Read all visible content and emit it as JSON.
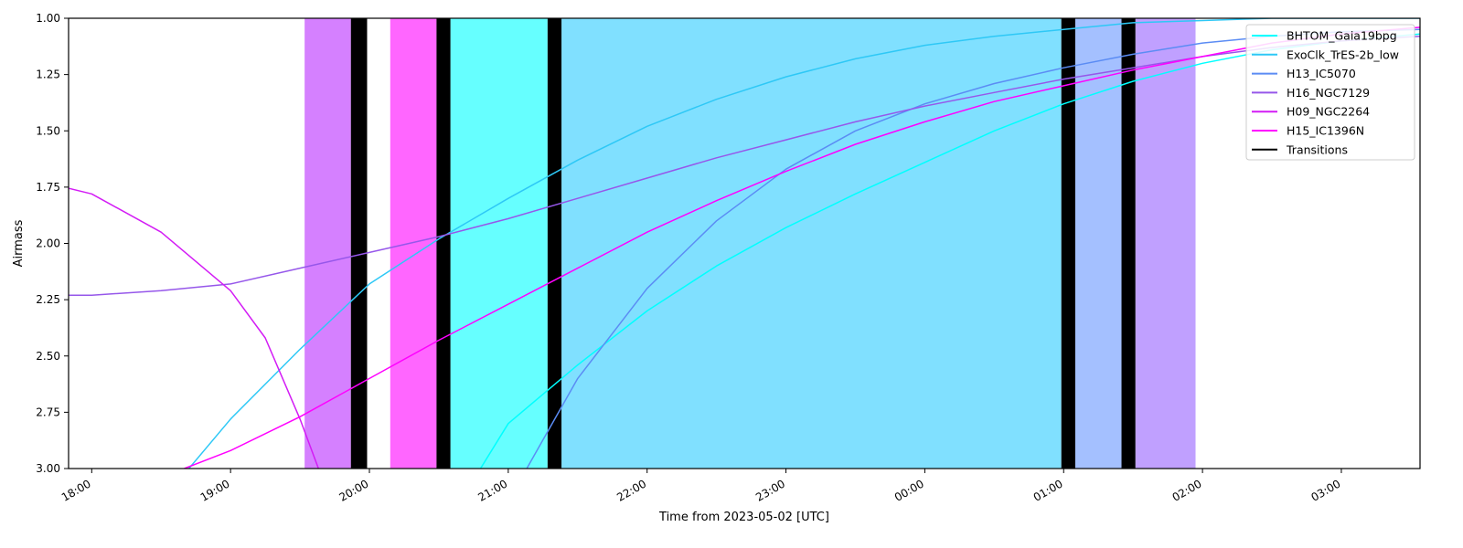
{
  "chart_data": {
    "type": "line",
    "title": "",
    "xlabel": "Time from 2023-05-02 [UTC]",
    "ylabel": "Airmass",
    "x_unit": "UTC time",
    "xlim": [
      "17:50",
      "03:34"
    ],
    "ylim": [
      3.0,
      1.0
    ],
    "y_inverted": true,
    "xticks": [
      "18:00",
      "19:00",
      "20:00",
      "21:00",
      "22:00",
      "23:00",
      "00:00",
      "01:00",
      "02:00",
      "03:00"
    ],
    "yticks": [
      "1.00",
      "1.25",
      "1.50",
      "1.75",
      "2.00",
      "2.25",
      "2.50",
      "2.75",
      "3.00"
    ],
    "legend_position": "top-right",
    "series": [
      {
        "name": "BHTOM_Gaia19bpg",
        "color": "#00ffff",
        "points": [
          [
            "20:48",
            3.0
          ],
          [
            "21:00",
            2.8
          ],
          [
            "21:30",
            2.54
          ],
          [
            "22:00",
            2.3
          ],
          [
            "22:30",
            2.1
          ],
          [
            "23:00",
            1.93
          ],
          [
            "23:30",
            1.78
          ],
          [
            "00:00",
            1.64
          ],
          [
            "00:30",
            1.5
          ],
          [
            "01:00",
            1.38
          ],
          [
            "01:30",
            1.28
          ],
          [
            "02:00",
            1.2
          ],
          [
            "02:30",
            1.14
          ],
          [
            "03:00",
            1.1
          ],
          [
            "03:34",
            1.07
          ]
        ]
      },
      {
        "name": "ExoClk_TrES-2b_low",
        "color": "#2ec8f6",
        "points": [
          [
            "18:42",
            3.0
          ],
          [
            "19:00",
            2.78
          ],
          [
            "19:30",
            2.47
          ],
          [
            "20:00",
            2.18
          ],
          [
            "20:30",
            1.98
          ],
          [
            "21:00",
            1.8
          ],
          [
            "21:30",
            1.63
          ],
          [
            "22:00",
            1.48
          ],
          [
            "22:30",
            1.36
          ],
          [
            "23:00",
            1.26
          ],
          [
            "23:30",
            1.18
          ],
          [
            "00:00",
            1.12
          ],
          [
            "00:30",
            1.08
          ],
          [
            "01:00",
            1.05
          ],
          [
            "01:30",
            1.02
          ],
          [
            "02:00",
            1.01
          ],
          [
            "02:30",
            1.0
          ],
          [
            "03:00",
            1.0
          ],
          [
            "03:34",
            1.0
          ]
        ]
      },
      {
        "name": "H13_IC5070",
        "color": "#5b8cf4",
        "points": [
          [
            "21:08",
            3.0
          ],
          [
            "21:30",
            2.6
          ],
          [
            "22:00",
            2.2
          ],
          [
            "22:30",
            1.9
          ],
          [
            "23:00",
            1.67
          ],
          [
            "23:30",
            1.5
          ],
          [
            "00:00",
            1.38
          ],
          [
            "00:30",
            1.29
          ],
          [
            "01:00",
            1.22
          ],
          [
            "01:30",
            1.16
          ],
          [
            "02:00",
            1.11
          ],
          [
            "02:30",
            1.08
          ],
          [
            "03:00",
            1.06
          ],
          [
            "03:34",
            1.05
          ]
        ]
      },
      {
        "name": "H16_NGC7129",
        "color": "#9657ea",
        "points": [
          [
            "17:48",
            2.23
          ],
          [
            "18:00",
            2.23
          ],
          [
            "18:30",
            2.21
          ],
          [
            "19:00",
            2.18
          ],
          [
            "19:30",
            2.11
          ],
          [
            "20:00",
            2.04
          ],
          [
            "20:30",
            1.97
          ],
          [
            "21:00",
            1.89
          ],
          [
            "21:30",
            1.8
          ],
          [
            "22:00",
            1.71
          ],
          [
            "22:30",
            1.62
          ],
          [
            "23:00",
            1.54
          ],
          [
            "23:30",
            1.46
          ],
          [
            "00:00",
            1.39
          ],
          [
            "00:30",
            1.33
          ],
          [
            "01:00",
            1.27
          ],
          [
            "01:30",
            1.22
          ],
          [
            "02:00",
            1.17
          ],
          [
            "02:30",
            1.13
          ],
          [
            "03:00",
            1.1
          ],
          [
            "03:34",
            1.08
          ]
        ]
      },
      {
        "name": "H09_NGC2264",
        "color": "#d31cf5",
        "points": [
          [
            "17:48",
            1.75
          ],
          [
            "18:00",
            1.78
          ],
          [
            "18:30",
            1.95
          ],
          [
            "19:00",
            2.21
          ],
          [
            "19:15",
            2.42
          ],
          [
            "19:30",
            2.78
          ],
          [
            "19:38",
            3.0
          ]
        ]
      },
      {
        "name": "H15_IC1396N",
        "color": "#ff00ff",
        "points": [
          [
            "18:40",
            3.0
          ],
          [
            "19:00",
            2.92
          ],
          [
            "19:30",
            2.77
          ],
          [
            "20:00",
            2.6
          ],
          [
            "20:30",
            2.43
          ],
          [
            "21:00",
            2.27
          ],
          [
            "21:30",
            2.11
          ],
          [
            "22:00",
            1.95
          ],
          [
            "22:30",
            1.81
          ],
          [
            "23:00",
            1.68
          ],
          [
            "23:30",
            1.56
          ],
          [
            "00:00",
            1.46
          ],
          [
            "00:30",
            1.37
          ],
          [
            "01:00",
            1.3
          ],
          [
            "01:30",
            1.23
          ],
          [
            "02:00",
            1.17
          ],
          [
            "02:30",
            1.11
          ],
          [
            "03:00",
            1.07
          ],
          [
            "03:34",
            1.04
          ]
        ]
      },
      {
        "name": "Transitions",
        "color": "#000000",
        "points": []
      }
    ],
    "observation_windows": [
      {
        "start": "19:32",
        "end": "19:52",
        "color": "#d580ff"
      },
      {
        "start": "20:09",
        "end": "20:29",
        "color": "#ff66ff"
      },
      {
        "start": "20:35",
        "end": "21:17",
        "color": "#66ffff"
      },
      {
        "start": "21:23",
        "end": "00:59",
        "color": "#80e0ff"
      },
      {
        "start": "01:05",
        "end": "01:25",
        "color": "#a4c0ff"
      },
      {
        "start": "01:31",
        "end": "01:57",
        "color": "#c0a0ff"
      }
    ],
    "transitions": [
      {
        "start": "19:52",
        "end": "19:59"
      },
      {
        "start": "20:29",
        "end": "20:35"
      },
      {
        "start": "21:17",
        "end": "21:23"
      },
      {
        "start": "00:59",
        "end": "01:05"
      },
      {
        "start": "01:25",
        "end": "01:31"
      }
    ]
  }
}
